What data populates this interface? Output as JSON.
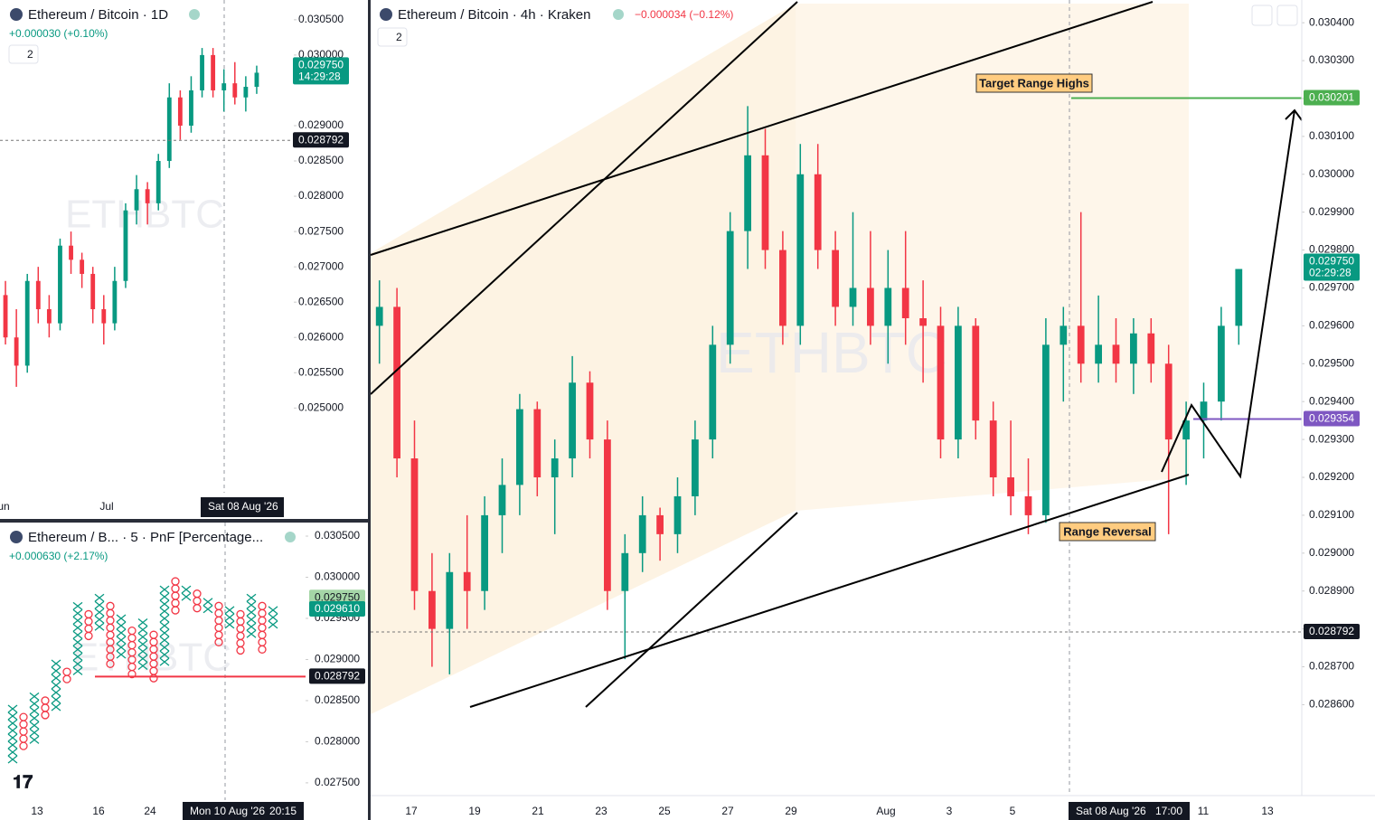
{
  "chart_data": [
    {
      "type": "candlestick",
      "title": "Ethereum / Bitcoin · 4h · Kraken",
      "change": "−0.000034 (−0.12%)",
      "indicator_count": "2",
      "watermark": "ETHBTC",
      "up_color": "#089981",
      "down_color": "#f23645",
      "annotations": [
        "Target Range Highs",
        "Range Reversal"
      ],
      "ylim": [
        0.02836,
        0.03046
      ],
      "yticks": [
        {
          "value": 0.0304,
          "label": "0.030400"
        },
        {
          "value": 0.0303,
          "label": "0.030300"
        },
        {
          "value": 0.0302,
          "label": "0.030200"
        },
        {
          "value": 0.0301,
          "label": "0.030100"
        },
        {
          "value": 0.03,
          "label": "0.030000"
        },
        {
          "value": 0.0299,
          "label": "0.029900"
        },
        {
          "value": 0.0298,
          "label": "0.029800"
        },
        {
          "value": 0.0297,
          "label": "0.029700"
        },
        {
          "value": 0.0296,
          "label": "0.029600"
        },
        {
          "value": 0.0295,
          "label": "0.029500"
        },
        {
          "value": 0.0294,
          "label": "0.029400"
        },
        {
          "value": 0.0293,
          "label": "0.029300"
        },
        {
          "value": 0.0292,
          "label": "0.029200"
        },
        {
          "value": 0.0291,
          "label": "0.029100"
        },
        {
          "value": 0.029,
          "label": "0.029000"
        },
        {
          "value": 0.0289,
          "label": "0.028900"
        },
        {
          "value": 0.0288,
          "label": "0.028800"
        },
        {
          "value": 0.0287,
          "label": "0.028700"
        },
        {
          "value": 0.0286,
          "label": "0.028600"
        }
      ],
      "categories": [
        "17",
        "19",
        "21",
        "23",
        "25",
        "27",
        "29",
        "Aug",
        "3",
        "5",
        "Sat 08 Aug '26",
        "17:00",
        "11",
        "13"
      ],
      "price_tags": [
        {
          "value": 0.030201,
          "label": "0.030201",
          "color": "#4caf50",
          "line_color": "#4caf50"
        },
        {
          "value": 0.02975,
          "label": "0.029750",
          "sublabel": "02:29:28",
          "color": "#089981"
        },
        {
          "value": 0.029354,
          "label": "0.029354",
          "color": "#7e57c2",
          "line_color": "#7e57c2"
        },
        {
          "value": 0.028792,
          "label": "0.028792",
          "color": "#131722"
        }
      ],
      "candles": [
        [
          0.0296,
          0.02972,
          0.0295,
          0.02965
        ],
        [
          0.02965,
          0.0297,
          0.0292,
          0.02925
        ],
        [
          0.02925,
          0.02935,
          0.02885,
          0.0289
        ],
        [
          0.0289,
          0.029,
          0.0287,
          0.0288
        ],
        [
          0.0288,
          0.029,
          0.02868,
          0.02895
        ],
        [
          0.02895,
          0.0291,
          0.0288,
          0.0289
        ],
        [
          0.0289,
          0.02915,
          0.02885,
          0.0291
        ],
        [
          0.0291,
          0.02925,
          0.029,
          0.02918
        ],
        [
          0.02918,
          0.02942,
          0.0291,
          0.02938
        ],
        [
          0.02938,
          0.0294,
          0.02915,
          0.0292
        ],
        [
          0.0292,
          0.0293,
          0.02905,
          0.02925
        ],
        [
          0.02925,
          0.02952,
          0.0292,
          0.02945
        ],
        [
          0.02945,
          0.02948,
          0.02925,
          0.0293
        ],
        [
          0.0293,
          0.02935,
          0.02885,
          0.0289
        ],
        [
          0.0289,
          0.02905,
          0.02872,
          0.029
        ],
        [
          0.029,
          0.02915,
          0.02895,
          0.0291
        ],
        [
          0.0291,
          0.02912,
          0.02898,
          0.02905
        ],
        [
          0.02905,
          0.0292,
          0.029,
          0.02915
        ],
        [
          0.02915,
          0.02935,
          0.0291,
          0.0293
        ],
        [
          0.0293,
          0.0296,
          0.02925,
          0.02955
        ],
        [
          0.02955,
          0.0299,
          0.0295,
          0.02985
        ],
        [
          0.02985,
          0.03018,
          0.02975,
          0.03005
        ],
        [
          0.03005,
          0.03012,
          0.02975,
          0.0298
        ],
        [
          0.0298,
          0.02985,
          0.02955,
          0.0296
        ],
        [
          0.0296,
          0.03008,
          0.02955,
          0.03
        ],
        [
          0.03,
          0.03008,
          0.02975,
          0.0298
        ],
        [
          0.0298,
          0.02985,
          0.0296,
          0.02965
        ],
        [
          0.02965,
          0.0299,
          0.0296,
          0.0297
        ],
        [
          0.0297,
          0.02985,
          0.02955,
          0.0296
        ],
        [
          0.0296,
          0.0298,
          0.0295,
          0.0297
        ],
        [
          0.0297,
          0.02985,
          0.02955,
          0.02962
        ],
        [
          0.02962,
          0.02972,
          0.02945,
          0.0296
        ],
        [
          0.0296,
          0.02965,
          0.02925,
          0.0293
        ],
        [
          0.0293,
          0.02965,
          0.02925,
          0.0296
        ],
        [
          0.0296,
          0.02962,
          0.0293,
          0.02935
        ],
        [
          0.02935,
          0.0294,
          0.02915,
          0.0292
        ],
        [
          0.0292,
          0.02935,
          0.0291,
          0.02915
        ],
        [
          0.02915,
          0.02925,
          0.02905,
          0.0291
        ],
        [
          0.0291,
          0.02962,
          0.02908,
          0.02955
        ],
        [
          0.02955,
          0.02965,
          0.0294,
          0.0296
        ],
        [
          0.0296,
          0.0299,
          0.02945,
          0.0295
        ],
        [
          0.0295,
          0.02968,
          0.02945,
          0.02955
        ],
        [
          0.02955,
          0.02962,
          0.02945,
          0.0295
        ],
        [
          0.0295,
          0.02962,
          0.02942,
          0.02958
        ],
        [
          0.02958,
          0.02962,
          0.02945,
          0.0295
        ],
        [
          0.0295,
          0.02955,
          0.02905,
          0.0293
        ],
        [
          0.0293,
          0.0294,
          0.02918,
          0.02935
        ],
        [
          0.02935,
          0.02945,
          0.02925,
          0.0294
        ],
        [
          0.0294,
          0.02965,
          0.02935,
          0.0296
        ],
        [
          0.0296,
          0.02975,
          0.02955,
          0.02975
        ]
      ]
    },
    {
      "type": "candlestick",
      "title": "Ethereum / Bitcoin · 1D",
      "change": "+0.000030 (+0.10%)",
      "indicator_count": "2",
      "watermark": "ETHBTC",
      "up_color": "#089981",
      "down_color": "#f23645",
      "ylim": [
        0.0238,
        0.03078
      ],
      "yticks": [
        {
          "value": 0.0305,
          "label": "0.030500"
        },
        {
          "value": 0.03,
          "label": "0.030000"
        },
        {
          "value": 0.029,
          "label": "0.029000"
        },
        {
          "value": 0.0285,
          "label": "0.028500"
        },
        {
          "value": 0.028,
          "label": "0.028000"
        },
        {
          "value": 0.0275,
          "label": "0.027500"
        },
        {
          "value": 0.027,
          "label": "0.027000"
        },
        {
          "value": 0.0265,
          "label": "0.026500"
        },
        {
          "value": 0.026,
          "label": "0.026000"
        },
        {
          "value": 0.0255,
          "label": "0.025500"
        },
        {
          "value": 0.025,
          "label": "0.025000"
        }
      ],
      "categories": [
        "un",
        "Jul",
        "Sat 08 Aug '26"
      ],
      "price_tags": [
        {
          "value": 0.02975,
          "label": "0.029750",
          "sublabel": "14:29:28",
          "color": "#089981"
        },
        {
          "value": 0.028792,
          "label": "0.028792",
          "color": "#131722"
        }
      ],
      "candles": [
        [
          0.0266,
          0.0268,
          0.0259,
          0.026
        ],
        [
          0.026,
          0.0264,
          0.0253,
          0.0256
        ],
        [
          0.0256,
          0.0269,
          0.0255,
          0.0268
        ],
        [
          0.0268,
          0.027,
          0.0262,
          0.0264
        ],
        [
          0.0264,
          0.0266,
          0.026,
          0.0262
        ],
        [
          0.0262,
          0.0274,
          0.0261,
          0.0273
        ],
        [
          0.0273,
          0.0275,
          0.0269,
          0.0271
        ],
        [
          0.0271,
          0.0272,
          0.0267,
          0.0269
        ],
        [
          0.0269,
          0.027,
          0.0262,
          0.0264
        ],
        [
          0.0264,
          0.0266,
          0.0259,
          0.0262
        ],
        [
          0.0262,
          0.027,
          0.0261,
          0.0268
        ],
        [
          0.0268,
          0.0279,
          0.0267,
          0.0278
        ],
        [
          0.0278,
          0.0283,
          0.0276,
          0.0281
        ],
        [
          0.0281,
          0.0282,
          0.0276,
          0.0279
        ],
        [
          0.0279,
          0.0286,
          0.0278,
          0.0285
        ],
        [
          0.0285,
          0.0296,
          0.0284,
          0.0294
        ],
        [
          0.0294,
          0.0295,
          0.0288,
          0.029
        ],
        [
          0.029,
          0.0297,
          0.0289,
          0.0295
        ],
        [
          0.0295,
          0.0301,
          0.0294,
          0.03
        ],
        [
          0.03,
          0.0301,
          0.0294,
          0.0295
        ],
        [
          0.0295,
          0.0298,
          0.0292,
          0.0296
        ],
        [
          0.0296,
          0.0299,
          0.0293,
          0.0294
        ],
        [
          0.0294,
          0.0297,
          0.0292,
          0.02955
        ],
        [
          0.02955,
          0.02985,
          0.02945,
          0.02975
        ]
      ]
    },
    {
      "type": "pnf",
      "title": "Ethereum / B... · 5 · PnF [Percentage...",
      "change": "+0.000630 (+2.17%)",
      "watermark": "ETHBTC",
      "up_color": "#089981",
      "down_color": "#f23645",
      "ylim": [
        0.02729,
        0.030665
      ],
      "yticks": [
        {
          "value": 0.0305,
          "label": "0.030500"
        },
        {
          "value": 0.03,
          "label": "0.030000"
        },
        {
          "value": 0.0295,
          "label": "0.029500"
        },
        {
          "value": 0.029,
          "label": "0.029000"
        },
        {
          "value": 0.0285,
          "label": "0.028500"
        },
        {
          "value": 0.028,
          "label": "0.028000"
        },
        {
          "value": 0.0275,
          "label": "0.027500"
        }
      ],
      "categories": [
        "13",
        "16",
        "24",
        "Mon 10 Aug '26",
        "20:15"
      ],
      "price_tags": [
        {
          "value": 0.02975,
          "label": "0.029750",
          "color": "#a5d6a7"
        },
        {
          "value": 0.02961,
          "label": "0.029610",
          "color": "#089981"
        },
        {
          "value": 0.028792,
          "label": "0.028792",
          "color": "#131722",
          "line_color": "#f23645"
        }
      ],
      "columns": [
        [
          "X",
          0.0277,
          0.0284
        ],
        [
          "O",
          0.0279,
          0.0283
        ],
        [
          "X",
          0.028,
          0.02855
        ],
        [
          "O",
          0.0283,
          0.0285
        ],
        [
          "X",
          0.0284,
          0.02895
        ],
        [
          "O",
          0.0287,
          0.02885
        ],
        [
          "X",
          0.0288,
          0.02965
        ],
        [
          "O",
          0.0292,
          0.02955
        ],
        [
          "X",
          0.02935,
          0.02975
        ],
        [
          "O",
          0.0289,
          0.02965
        ],
        [
          "X",
          0.02905,
          0.0295
        ],
        [
          "O",
          0.02875,
          0.02935
        ],
        [
          "X",
          0.0289,
          0.02945
        ],
        [
          "O",
          0.02875,
          0.0293
        ],
        [
          "X",
          0.02895,
          0.02985
        ],
        [
          "O",
          0.02955,
          0.02995
        ],
        [
          "X",
          0.0297,
          0.02985
        ],
        [
          "O",
          0.02955,
          0.0298
        ],
        [
          "X",
          0.0296,
          0.0297
        ],
        [
          "O",
          0.0292,
          0.02965
        ],
        [
          "X",
          0.02935,
          0.0296
        ],
        [
          "O",
          0.0291,
          0.02955
        ],
        [
          "X",
          0.02925,
          0.02975
        ],
        [
          "O",
          0.0291,
          0.02965
        ],
        [
          "X",
          0.02935,
          0.0296
        ]
      ]
    }
  ]
}
